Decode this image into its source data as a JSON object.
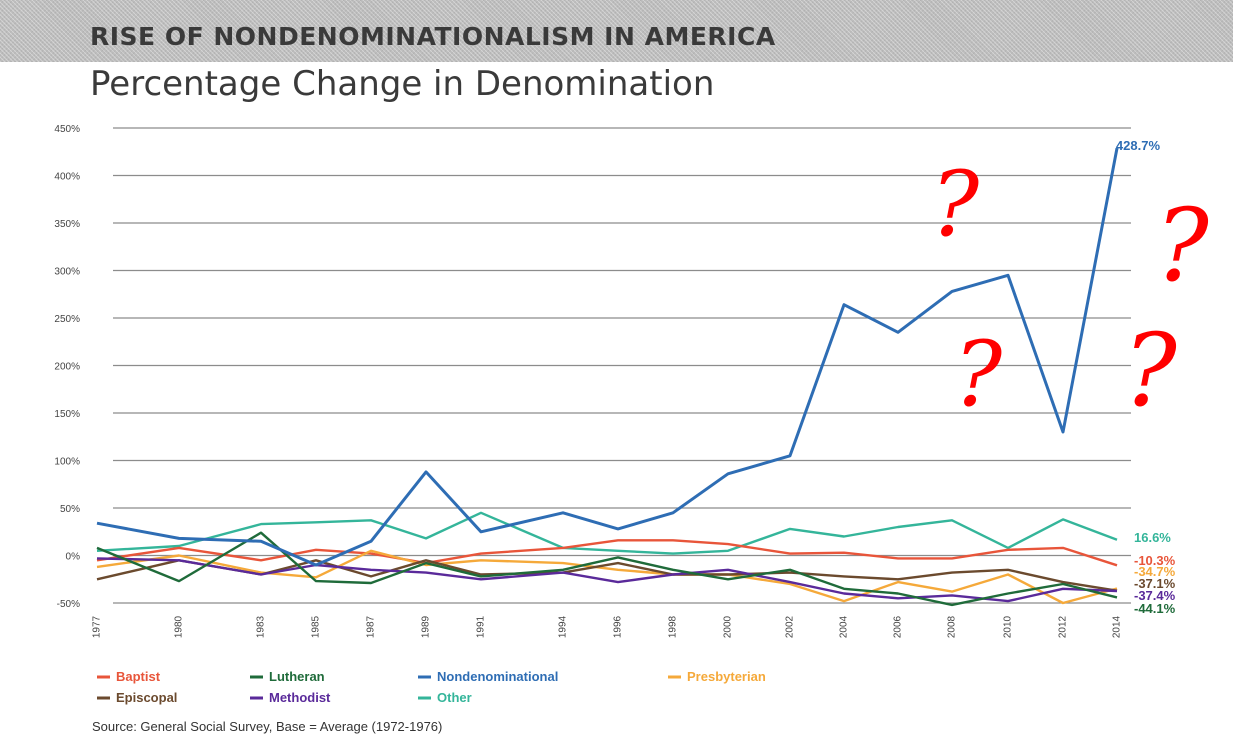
{
  "title": "RISE OF NONDENOMINATIONALISM IN AMERICA",
  "subtitle": "Percentage Change in Denomination",
  "source": "Source: General Social Survey, Base = Average (1972-1976)",
  "chart_data": {
    "type": "line",
    "title": "RISE OF NONDENOMINATIONALISM IN AMERICA",
    "subtitle": "Percentage Change in Denomination",
    "x": [
      "1977",
      "1980",
      "1983",
      "1985",
      "1987",
      "1989",
      "1991",
      "1994",
      "1996",
      "1998",
      "2000",
      "2002",
      "2004",
      "2006",
      "2008",
      "2010",
      "2012",
      "2014"
    ],
    "y_ticks": [
      "450%",
      "400%",
      "350%",
      "300%",
      "250%",
      "200%",
      "150%",
      "100%",
      "50%",
      "0%",
      "-50%"
    ],
    "ylim": [
      -50,
      450
    ],
    "grid": true,
    "legend_position": "bottom",
    "series": [
      {
        "name": "Baptist",
        "color": "#e8553a",
        "values": [
          -5,
          8,
          -5,
          6,
          2,
          -8,
          2,
          8,
          16,
          16,
          12,
          2,
          3,
          -3,
          -3,
          6,
          8,
          -10.3
        ],
        "end_label": "-10.3%"
      },
      {
        "name": "Lutheran",
        "color": "#1f6b3a",
        "values": [
          8,
          -27,
          24,
          -27,
          -29,
          -8,
          -22,
          -15,
          -2,
          -15,
          -25,
          -15,
          -35,
          -40,
          -52,
          -40,
          -30,
          -44.1
        ],
        "end_label": "-44.1%"
      },
      {
        "name": "Nondenominational",
        "color": "#2e6db4",
        "values": [
          34,
          18,
          15,
          -10,
          15,
          88,
          25,
          45,
          28,
          45,
          86,
          105,
          264,
          235,
          278,
          295,
          130,
          428.7
        ],
        "end_label": "428.7%"
      },
      {
        "name": "Presbyterian",
        "color": "#f5a93a",
        "values": [
          -12,
          0,
          -18,
          -23,
          5,
          -10,
          -5,
          -8,
          -15,
          -20,
          -20,
          -30,
          -48,
          -28,
          -38,
          -20,
          -50,
          -34.7
        ],
        "end_label": "-34.7%"
      },
      {
        "name": "Episcopal",
        "color": "#6b4a2e",
        "values": [
          -25,
          -5,
          -20,
          -5,
          -22,
          -5,
          -20,
          -18,
          -8,
          -20,
          -20,
          -18,
          -22,
          -25,
          -18,
          -15,
          -28,
          -37.1
        ],
        "end_label": "-37.1%"
      },
      {
        "name": "Methodist",
        "color": "#5a2a9a",
        "values": [
          -3,
          -5,
          -20,
          -10,
          -15,
          -18,
          -25,
          -18,
          -28,
          -20,
          -15,
          -28,
          -40,
          -45,
          -42,
          -48,
          -35,
          -37.4
        ],
        "end_label": "-37.4%"
      },
      {
        "name": "Other",
        "color": "#34b59a",
        "values": [
          5,
          10,
          33,
          35,
          37,
          18,
          45,
          8,
          5,
          2,
          5,
          28,
          20,
          30,
          37,
          8,
          38,
          16.6
        ],
        "end_label": "16.6%"
      }
    ],
    "annotations": [
      "?",
      "?",
      "?",
      "?"
    ],
    "annotation_color": "#ff0000"
  }
}
